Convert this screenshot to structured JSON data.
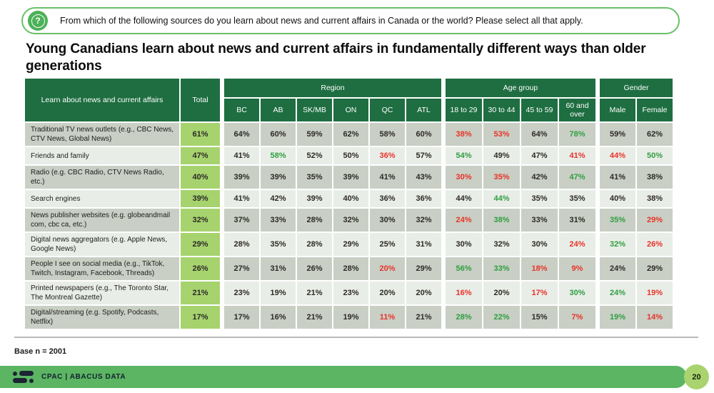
{
  "question_banner": {
    "icon": "question-mark-icon",
    "text": "From which of the following sources do you learn about news and current affairs in Canada or the world? Please select all that apply."
  },
  "title": "Young Canadians learn about news and current affairs in fundamentally different ways than older generations",
  "chart_data": {
    "type": "table",
    "corner_header": "Learn about news and current affairs",
    "total_header": "Total",
    "groups": [
      {
        "label": "Region",
        "cols": [
          "BC",
          "AB",
          "SK/MB",
          "ON",
          "QC",
          "ATL"
        ]
      },
      {
        "label": "Age group",
        "cols": [
          "18 to 29",
          "30 to 44",
          "45 to 59",
          "60 and over"
        ]
      },
      {
        "label": "Gender",
        "cols": [
          "Male",
          "Female"
        ]
      }
    ],
    "value_flags_legend": {
      "g": "green (higher)",
      "r": "red (lower)"
    },
    "rows": [
      {
        "label": "Traditional TV news outlets (e.g., CBC News, CTV News, Global News)",
        "total": "61%",
        "cells": [
          [
            "64%",
            ""
          ],
          [
            "60%",
            ""
          ],
          [
            "59%",
            ""
          ],
          [
            "62%",
            ""
          ],
          [
            "58%",
            ""
          ],
          [
            "60%",
            ""
          ],
          [
            "38%",
            "r"
          ],
          [
            "53%",
            "r"
          ],
          [
            "64%",
            ""
          ],
          [
            "78%",
            "g"
          ],
          [
            "59%",
            ""
          ],
          [
            "62%",
            ""
          ]
        ]
      },
      {
        "label": "Friends and family",
        "total": "47%",
        "cells": [
          [
            "41%",
            ""
          ],
          [
            "58%",
            "g"
          ],
          [
            "52%",
            ""
          ],
          [
            "50%",
            ""
          ],
          [
            "36%",
            "r"
          ],
          [
            "57%",
            ""
          ],
          [
            "54%",
            "g"
          ],
          [
            "49%",
            ""
          ],
          [
            "47%",
            ""
          ],
          [
            "41%",
            "r"
          ],
          [
            "44%",
            "r"
          ],
          [
            "50%",
            "g"
          ]
        ]
      },
      {
        "label": "Radio (e.g. CBC Radio, CTV News Radio, etc.)",
        "total": "40%",
        "cells": [
          [
            "39%",
            ""
          ],
          [
            "39%",
            ""
          ],
          [
            "35%",
            ""
          ],
          [
            "39%",
            ""
          ],
          [
            "41%",
            ""
          ],
          [
            "43%",
            ""
          ],
          [
            "30%",
            "r"
          ],
          [
            "35%",
            "r"
          ],
          [
            "42%",
            ""
          ],
          [
            "47%",
            "g"
          ],
          [
            "41%",
            ""
          ],
          [
            "38%",
            ""
          ]
        ]
      },
      {
        "label": "Search engines",
        "total": "39%",
        "cells": [
          [
            "41%",
            ""
          ],
          [
            "42%",
            ""
          ],
          [
            "39%",
            ""
          ],
          [
            "40%",
            ""
          ],
          [
            "36%",
            ""
          ],
          [
            "36%",
            ""
          ],
          [
            "44%",
            ""
          ],
          [
            "44%",
            "g"
          ],
          [
            "35%",
            ""
          ],
          [
            "35%",
            ""
          ],
          [
            "40%",
            ""
          ],
          [
            "38%",
            ""
          ]
        ]
      },
      {
        "label": "News publisher websites (e.g. globeandmail com, cbc ca, etc.)",
        "total": "32%",
        "cells": [
          [
            "37%",
            ""
          ],
          [
            "33%",
            ""
          ],
          [
            "28%",
            ""
          ],
          [
            "32%",
            ""
          ],
          [
            "30%",
            ""
          ],
          [
            "32%",
            ""
          ],
          [
            "24%",
            "r"
          ],
          [
            "38%",
            "g"
          ],
          [
            "33%",
            ""
          ],
          [
            "31%",
            ""
          ],
          [
            "35%",
            "g"
          ],
          [
            "29%",
            "r"
          ]
        ]
      },
      {
        "label": "Digital news aggregators (e.g. Apple News, Google News)",
        "total": "29%",
        "cells": [
          [
            "28%",
            ""
          ],
          [
            "35%",
            ""
          ],
          [
            "28%",
            ""
          ],
          [
            "29%",
            ""
          ],
          [
            "25%",
            ""
          ],
          [
            "31%",
            ""
          ],
          [
            "30%",
            ""
          ],
          [
            "32%",
            ""
          ],
          [
            "30%",
            ""
          ],
          [
            "24%",
            "r"
          ],
          [
            "32%",
            "g"
          ],
          [
            "26%",
            "r"
          ]
        ]
      },
      {
        "label": "People I see on social media (e.g., TikTok, Twitch, Instagram, Facebook, Threads)",
        "total": "26%",
        "cells": [
          [
            "27%",
            ""
          ],
          [
            "31%",
            ""
          ],
          [
            "26%",
            ""
          ],
          [
            "28%",
            ""
          ],
          [
            "20%",
            "r"
          ],
          [
            "29%",
            ""
          ],
          [
            "56%",
            "g"
          ],
          [
            "33%",
            "g"
          ],
          [
            "18%",
            "r"
          ],
          [
            "9%",
            "r"
          ],
          [
            "24%",
            ""
          ],
          [
            "29%",
            ""
          ]
        ]
      },
      {
        "label": "Printed newspapers (e.g., The Toronto Star, The Montreal Gazette)",
        "total": "21%",
        "cells": [
          [
            "23%",
            ""
          ],
          [
            "19%",
            ""
          ],
          [
            "21%",
            ""
          ],
          [
            "23%",
            ""
          ],
          [
            "20%",
            ""
          ],
          [
            "20%",
            ""
          ],
          [
            "16%",
            "r"
          ],
          [
            "20%",
            ""
          ],
          [
            "17%",
            "r"
          ],
          [
            "30%",
            "g"
          ],
          [
            "24%",
            "g"
          ],
          [
            "19%",
            "r"
          ]
        ]
      },
      {
        "label": "Digital/streaming (e.g. Spotify, Podcasts, Netflix)",
        "total": "17%",
        "cells": [
          [
            "17%",
            ""
          ],
          [
            "16%",
            ""
          ],
          [
            "21%",
            ""
          ],
          [
            "19%",
            ""
          ],
          [
            "11%",
            "r"
          ],
          [
            "21%",
            ""
          ],
          [
            "28%",
            "g"
          ],
          [
            "22%",
            "g"
          ],
          [
            "15%",
            ""
          ],
          [
            "7%",
            "r"
          ],
          [
            "19%",
            "g"
          ],
          [
            "14%",
            "r"
          ]
        ]
      }
    ]
  },
  "base_note": "Base n = 2001",
  "footer": {
    "brand": "CPAC | ABACUS DATA",
    "page": "20"
  },
  "colors": {
    "header_green": "#1e6e41",
    "total_green": "#a6d36e",
    "row_dark": "#c9cfc4",
    "row_light": "#e9ede7",
    "positive_text": "#2f9e41",
    "negative_text": "#e8332a",
    "footer_green": "#5bb563",
    "banner_border": "#6abf69"
  }
}
